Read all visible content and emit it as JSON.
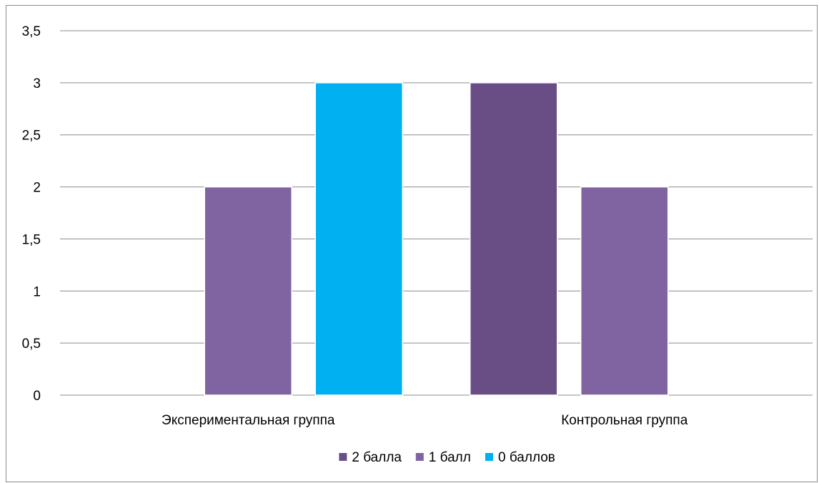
{
  "chart_data": {
    "type": "bar",
    "title": "",
    "xlabel": "",
    "ylabel": "",
    "categories": [
      "Экспериментальная группа",
      "Контрольная группа"
    ],
    "series": [
      {
        "name": "2 балла",
        "values": [
          0,
          3
        ],
        "color": "#694E86"
      },
      {
        "name": "1 балл",
        "values": [
          2,
          2
        ],
        "color": "#8064A2"
      },
      {
        "name": "0 баллов",
        "values": [
          3,
          0
        ],
        "color": "#00B0F0"
      }
    ],
    "ylim": [
      0,
      3.5
    ],
    "yticks": [
      "0",
      "0,5",
      "1",
      "1,5",
      "2",
      "2,5",
      "3",
      "3,5"
    ],
    "grid": true,
    "legend_position": "bottom"
  }
}
